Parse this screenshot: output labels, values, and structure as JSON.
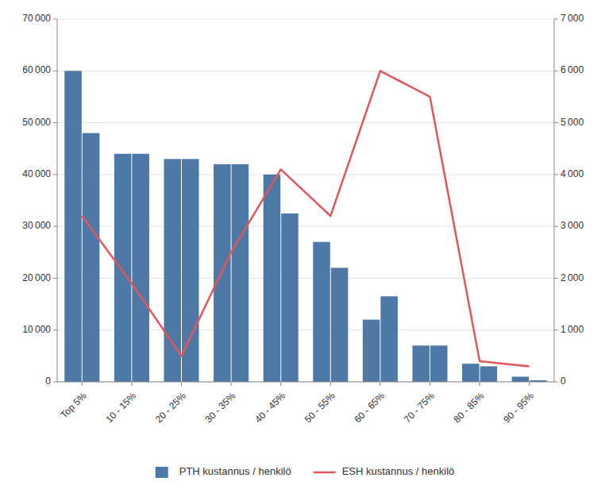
{
  "chart_data": {
    "type": "bar",
    "categories": [
      "Top 5%",
      "10 - 15%",
      "20 - 25%",
      "30 - 35%",
      "40 - 45%",
      "50 - 55%",
      "60 - 65%",
      "70 - 75%",
      "80 - 85%",
      "90 - 95%"
    ],
    "series": [
      {
        "name": "PTH kustannus / henkilö",
        "color": "#4e79a7",
        "values": [
          60000,
          44000,
          43000,
          42000,
          40000,
          27000,
          12000,
          7000,
          3500,
          1000
        ]
      },
      {
        "color": "#4e79a7",
        "values": [
          48000,
          44000,
          43000,
          42000,
          32500,
          22000,
          16500,
          7000,
          3000,
          300
        ]
      },
      {
        "name": "ESH kustannus / henkilö",
        "type": "line",
        "axis": "y2",
        "color": "#e15759",
        "values": [
          3200,
          1900,
          500,
          2500,
          4100,
          3200,
          6000,
          5500,
          400,
          300
        ]
      }
    ],
    "ylim": [
      0,
      70000
    ],
    "yticks": [
      0,
      {
        "value": 10000,
        "label": "10 000"
      },
      {
        "value": 20000,
        "label": "20 000"
      },
      {
        "value": 30000,
        "label": "30 000"
      },
      {
        "value": 40000,
        "label": "40 000"
      },
      {
        "value": 50000,
        "label": "50 000"
      },
      {
        "value": 60000,
        "label": "60 000"
      },
      {
        "value": 70000,
        "label": "70 000"
      }
    ],
    "y2lim": [
      0,
      7000
    ],
    "y2ticks": [
      0,
      {
        "value": 1000,
        "label": "1 000"
      },
      {
        "value": 2000,
        "label": "2 000"
      },
      {
        "value": 3000,
        "label": "3 000"
      },
      {
        "value": 4000,
        "label": "4 000"
      },
      {
        "value": 5000,
        "label": "5 000"
      },
      {
        "value": 6000,
        "label": "6 000"
      },
      {
        "value": 7000,
        "label": "7 000"
      }
    ],
    "grid": true,
    "legend": "bottom"
  }
}
